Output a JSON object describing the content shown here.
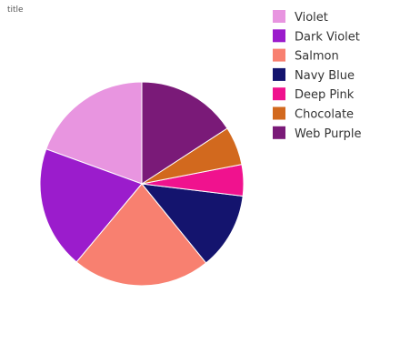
{
  "chart_data": {
    "type": "pie",
    "title": "title",
    "legend_position": "right",
    "slices": [
      {
        "name": "Violet",
        "value": 18.8,
        "color": "#e895e0"
      },
      {
        "name": "Dark Violet",
        "value": 18.8,
        "color": "#9b1ccc"
      },
      {
        "name": "Salmon",
        "value": 21.2,
        "color": "#f88070"
      },
      {
        "name": "Navy Blue",
        "value": 11.8,
        "color": "#14146e"
      },
      {
        "name": "Deep Pink",
        "value": 4.8,
        "color": "#f0128e"
      },
      {
        "name": "Chocolate",
        "value": 5.9,
        "color": "#d2691e"
      },
      {
        "name": "Web Purple",
        "value": 15.3,
        "color": "#7a1a78"
      }
    ]
  }
}
